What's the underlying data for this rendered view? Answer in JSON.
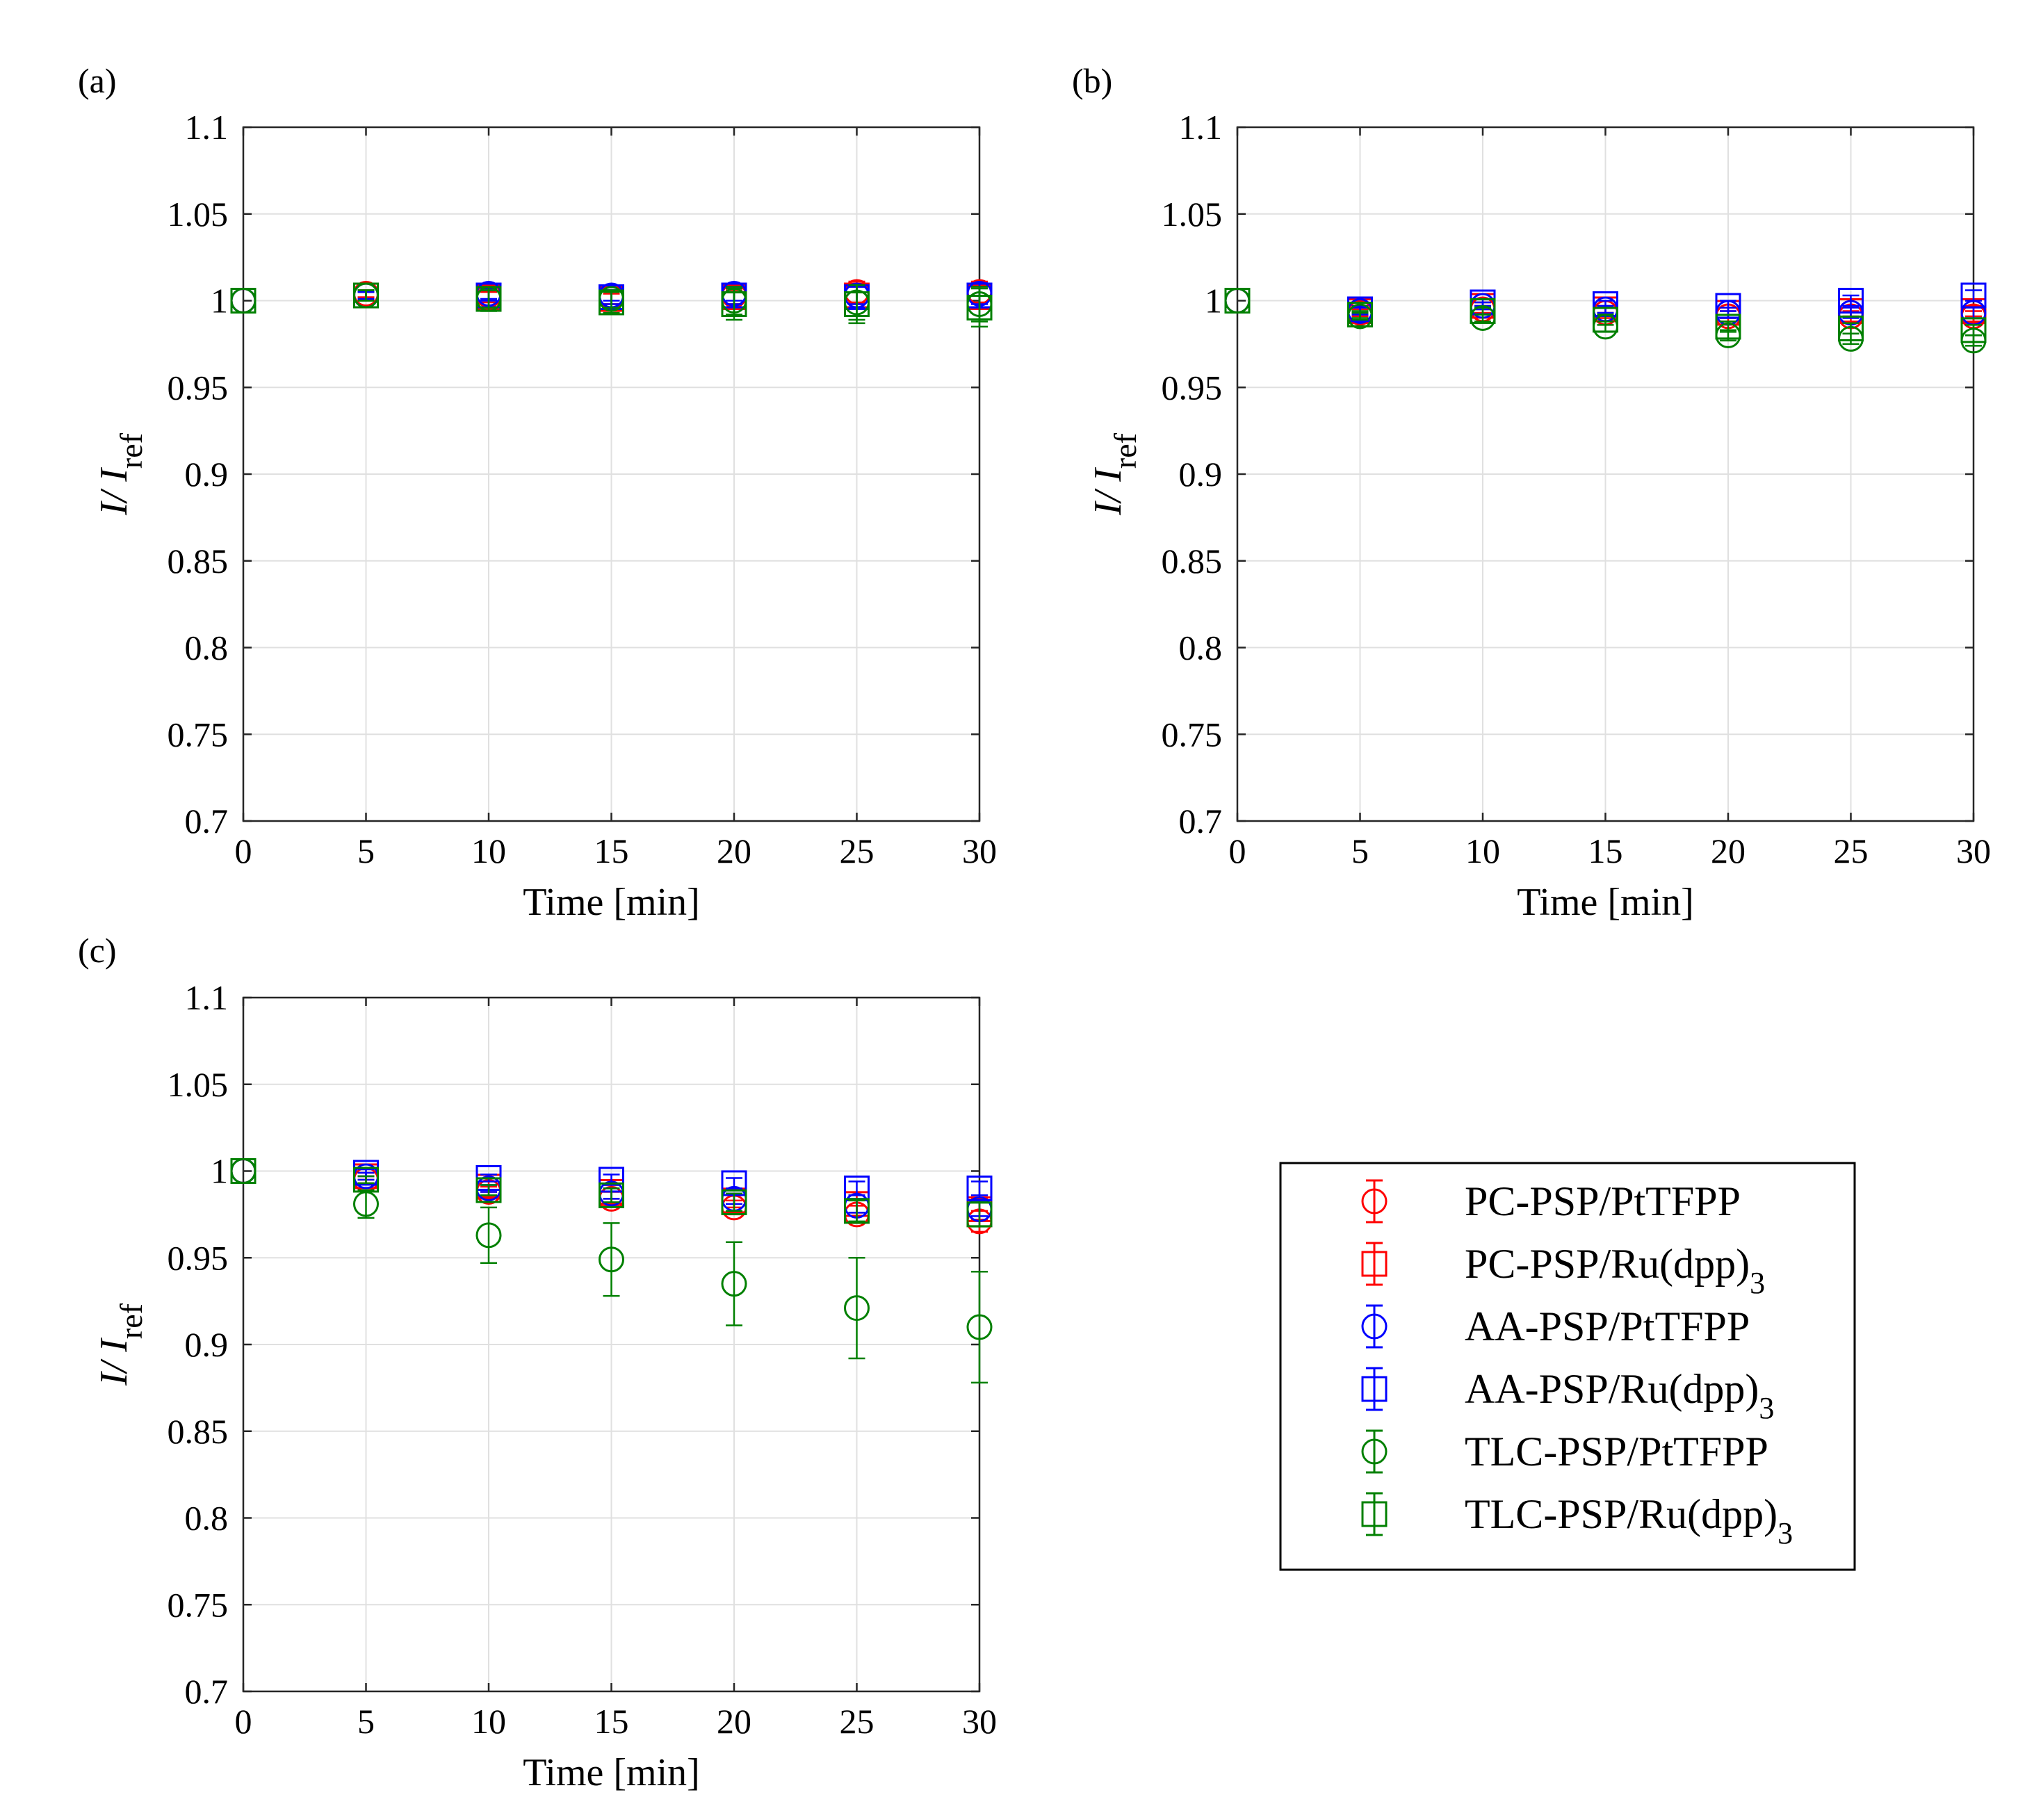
{
  "colors": {
    "PC": "#ff0000",
    "AA": "#0000ff",
    "TLC": "#008000",
    "grid": "#e0e0e0",
    "axis": "#262626"
  },
  "legend": {
    "entries": [
      {
        "name": "PC-PSP/PtTFPP",
        "text": "PC-PSP/PtTFPP",
        "sub": "",
        "marker": "circle",
        "color": "#ff0000"
      },
      {
        "name": "PC-PSP/Ru(dpp)3",
        "text": "PC-PSP/Ru(dpp)",
        "sub": "3",
        "marker": "square",
        "color": "#ff0000"
      },
      {
        "name": "AA-PSP/PtTFPP",
        "text": "AA-PSP/PtTFPP",
        "sub": "",
        "marker": "circle",
        "color": "#0000ff"
      },
      {
        "name": "AA-PSP/Ru(dpp)3",
        "text": "AA-PSP/Ru(dpp)",
        "sub": "3",
        "marker": "square",
        "color": "#0000ff"
      },
      {
        "name": "TLC-PSP/PtTFPP",
        "text": "TLC-PSP/PtTFPP",
        "sub": "",
        "marker": "circle",
        "color": "#008000"
      },
      {
        "name": "TLC-PSP/Ru(dpp)3",
        "text": "TLC-PSP/Ru(dpp)",
        "sub": "3",
        "marker": "square",
        "color": "#008000"
      }
    ]
  },
  "chart_data": [
    {
      "panel": "(a)",
      "type": "scatter",
      "xlabel": "Time  [min]",
      "ylabel_main": "I/ I",
      "ylabel_sub": "ref",
      "xlim": [
        0,
        30
      ],
      "ylim": [
        0.7,
        1.1
      ],
      "xticks": [
        0,
        5,
        10,
        15,
        20,
        25,
        30
      ],
      "yticks": [
        0.7,
        0.75,
        0.8,
        0.85,
        0.9,
        0.95,
        1,
        1.05,
        1.1
      ],
      "ytick_labels": [
        "0.7",
        "0.75",
        "0.8",
        "0.85",
        "0.9",
        "0.95",
        "1",
        "1.05",
        "1.1"
      ],
      "grid": true,
      "x": [
        0,
        5,
        10,
        15,
        20,
        25,
        30
      ],
      "series": [
        {
          "name": "PC-PSP/PtTFPP",
          "color": "#ff0000",
          "marker": "circle",
          "values": [
            1.0,
            1.004,
            1.003,
            1.002,
            1.003,
            1.005,
            1.005
          ],
          "errors": [
            0,
            0.002,
            0.003,
            0.004,
            0.005,
            0.006,
            0.006
          ]
        },
        {
          "name": "PC-PSP/Ru(dpp)3",
          "color": "#ff0000",
          "marker": "square",
          "values": [
            1.0,
            1.003,
            1.002,
            1.001,
            1.002,
            1.003,
            1.002
          ],
          "errors": [
            0,
            0.002,
            0.003,
            0.003,
            0.004,
            0.005,
            0.006
          ]
        },
        {
          "name": "AA-PSP/PtTFPP",
          "color": "#0000ff",
          "marker": "circle",
          "values": [
            1.0,
            1.003,
            1.004,
            1.003,
            1.004,
            1.003,
            1.004
          ],
          "errors": [
            0,
            0.002,
            0.003,
            0.003,
            0.004,
            0.005,
            0.006
          ]
        },
        {
          "name": "AA-PSP/Ru(dpp)3",
          "color": "#0000ff",
          "marker": "square",
          "values": [
            1.0,
            1.003,
            1.003,
            1.002,
            1.003,
            1.002,
            1.003
          ],
          "errors": [
            0,
            0.002,
            0.003,
            0.004,
            0.005,
            0.006,
            0.007
          ]
        },
        {
          "name": "TLC-PSP/PtTFPP",
          "color": "#008000",
          "marker": "circle",
          "values": [
            1.0,
            1.003,
            1.001,
            1.001,
            1.0,
            0.999,
            0.998
          ],
          "errors": [
            0,
            0.003,
            0.005,
            0.005,
            0.008,
            0.01,
            0.01
          ]
        },
        {
          "name": "TLC-PSP/Ru(dpp)3",
          "color": "#008000",
          "marker": "square",
          "values": [
            1.0,
            1.003,
            1.001,
            0.999,
            0.998,
            0.998,
            0.996
          ],
          "errors": [
            0,
            0.003,
            0.007,
            0.006,
            0.009,
            0.011,
            0.011
          ]
        }
      ]
    },
    {
      "panel": "(b)",
      "type": "scatter",
      "xlabel": "Time  [min]",
      "ylabel_main": "I/ I",
      "ylabel_sub": "ref",
      "xlim": [
        0,
        30
      ],
      "ylim": [
        0.7,
        1.1
      ],
      "xticks": [
        0,
        5,
        10,
        15,
        20,
        25,
        30
      ],
      "yticks": [
        0.7,
        0.75,
        0.8,
        0.85,
        0.9,
        0.95,
        1,
        1.05,
        1.1
      ],
      "ytick_labels": [
        "0.7",
        "0.75",
        "0.8",
        "0.85",
        "0.9",
        "0.95",
        "1",
        "1.05",
        "1.1"
      ],
      "grid": true,
      "x": [
        0,
        5,
        10,
        15,
        20,
        25,
        30
      ],
      "series": [
        {
          "name": "PC-PSP/PtTFPP",
          "color": "#ff0000",
          "marker": "circle",
          "values": [
            1.0,
            0.993,
            0.995,
            0.993,
            0.991,
            0.991,
            0.991
          ],
          "errors": [
            0,
            0.002,
            0.002,
            0.003,
            0.003,
            0.003,
            0.003
          ]
        },
        {
          "name": "PC-PSP/Ru(dpp)3",
          "color": "#ff0000",
          "marker": "square",
          "values": [
            1.0,
            0.994,
            0.997,
            0.995,
            0.993,
            0.994,
            0.994
          ],
          "errors": [
            0,
            0.002,
            0.002,
            0.002,
            0.003,
            0.003,
            0.003
          ]
        },
        {
          "name": "AA-PSP/PtTFPP",
          "color": "#0000ff",
          "marker": "circle",
          "values": [
            1.0,
            0.994,
            0.997,
            0.995,
            0.993,
            0.993,
            0.993
          ],
          "errors": [
            0,
            0.002,
            0.002,
            0.002,
            0.003,
            0.003,
            0.003
          ]
        },
        {
          "name": "AA-PSP/Ru(dpp)3",
          "color": "#0000ff",
          "marker": "square",
          "values": [
            1.0,
            0.995,
            0.999,
            0.998,
            0.997,
            1.0,
            1.003
          ],
          "errors": [
            0,
            0.002,
            0.002,
            0.002,
            0.003,
            0.003,
            0.003
          ]
        },
        {
          "name": "TLC-PSP/PtTFPP",
          "color": "#008000",
          "marker": "circle",
          "values": [
            1.0,
            0.991,
            0.99,
            0.985,
            0.98,
            0.978,
            0.977
          ],
          "errors": [
            0,
            0.002,
            0.002,
            0.003,
            0.003,
            0.003,
            0.003
          ]
        },
        {
          "name": "TLC-PSP/Ru(dpp)3",
          "color": "#008000",
          "marker": "square",
          "values": [
            1.0,
            0.992,
            0.994,
            0.989,
            0.985,
            0.984,
            0.983
          ],
          "errors": [
            0,
            0.002,
            0.002,
            0.003,
            0.003,
            0.003,
            0.003
          ]
        }
      ]
    },
    {
      "panel": "(c)",
      "type": "scatter",
      "xlabel": "Time  [min]",
      "ylabel_main": "I/ I",
      "ylabel_sub": "ref",
      "xlim": [
        0,
        30
      ],
      "ylim": [
        0.7,
        1.1
      ],
      "xticks": [
        0,
        5,
        10,
        15,
        20,
        25,
        30
      ],
      "yticks": [
        0.7,
        0.75,
        0.8,
        0.85,
        0.9,
        0.95,
        1,
        1.05,
        1.1
      ],
      "ytick_labels": [
        "0.7",
        "0.75",
        "0.8",
        "0.85",
        "0.9",
        "0.95",
        "1",
        "1.05",
        "1.1"
      ],
      "grid": true,
      "x": [
        0,
        5,
        10,
        15,
        20,
        25,
        30
      ],
      "series": [
        {
          "name": "PC-PSP/PtTFPP",
          "color": "#ff0000",
          "marker": "circle",
          "values": [
            1.0,
            0.995,
            0.988,
            0.984,
            0.979,
            0.975,
            0.971
          ],
          "errors": [
            0,
            0.002,
            0.003,
            0.004,
            0.004,
            0.005,
            0.006
          ]
        },
        {
          "name": "PC-PSP/Ru(dpp)3",
          "color": "#ff0000",
          "marker": "square",
          "values": [
            1.0,
            0.997,
            0.991,
            0.988,
            0.983,
            0.981,
            0.978
          ],
          "errors": [
            0,
            0.002,
            0.003,
            0.004,
            0.004,
            0.005,
            0.006
          ]
        },
        {
          "name": "AA-PSP/PtTFPP",
          "color": "#0000ff",
          "marker": "circle",
          "values": [
            1.0,
            0.997,
            0.99,
            0.987,
            0.984,
            0.98,
            0.978
          ],
          "errors": [
            0,
            0.002,
            0.002,
            0.003,
            0.003,
            0.004,
            0.004
          ]
        },
        {
          "name": "AA-PSP/Ru(dpp)3",
          "color": "#0000ff",
          "marker": "square",
          "values": [
            1.0,
            0.999,
            0.996,
            0.995,
            0.993,
            0.99,
            0.99
          ],
          "errors": [
            0,
            0.002,
            0.002,
            0.003,
            0.003,
            0.004,
            0.004
          ]
        },
        {
          "name": "TLC-PSP/PtTFPP",
          "color": "#008000",
          "marker": "circle",
          "values": [
            1.0,
            0.981,
            0.963,
            0.949,
            0.935,
            0.921,
            0.91
          ],
          "errors": [
            0,
            0.008,
            0.016,
            0.021,
            0.024,
            0.029,
            0.032
          ]
        },
        {
          "name": "TLC-PSP/Ru(dpp)3",
          "color": "#008000",
          "marker": "square",
          "values": [
            1.0,
            0.995,
            0.989,
            0.986,
            0.982,
            0.977,
            0.975
          ],
          "errors": [
            0,
            0.002,
            0.003,
            0.004,
            0.005,
            0.006,
            0.007
          ]
        }
      ]
    }
  ]
}
